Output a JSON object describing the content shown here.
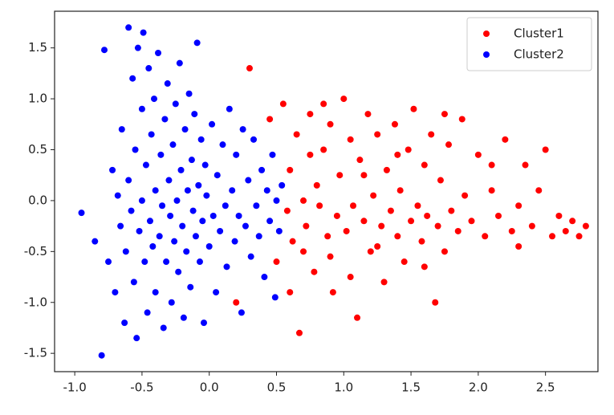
{
  "chart_data": {
    "type": "scatter",
    "xlim": [
      -1.15,
      2.89
    ],
    "ylim": [
      -1.68,
      1.86
    ],
    "xticks": [
      {
        "value": -1.0,
        "label": "-1.0"
      },
      -0.5,
      {
        "value": 0.0,
        "label": "0.0"
      },
      0.5,
      {
        "value": 1.0,
        "label": "1.0"
      },
      1.5,
      {
        "value": 2.0,
        "label": "2.0"
      },
      2.5
    ],
    "yticks": [
      {
        "value": -1.5,
        "label": "-1.5"
      },
      {
        "value": -1.0,
        "label": "-1.0"
      },
      -0.5,
      {
        "value": 0.0,
        "label": "0.0"
      },
      0.5,
      {
        "value": 1.0,
        "label": "1.0"
      },
      1.5
    ],
    "legend": "upper right",
    "series": [
      {
        "name": "Cluster1",
        "color": "#ff0000",
        "x": [
          0.3,
          0.2,
          0.45,
          0.5,
          0.55,
          0.58,
          0.6,
          0.62,
          0.65,
          0.67,
          0.7,
          0.72,
          0.75,
          0.78,
          0.8,
          0.82,
          0.85,
          0.88,
          0.9,
          0.92,
          0.95,
          0.97,
          1.0,
          1.02,
          1.05,
          1.07,
          1.1,
          1.12,
          1.15,
          1.18,
          1.2,
          1.22,
          1.25,
          1.28,
          1.3,
          1.32,
          1.35,
          1.38,
          1.4,
          1.42,
          1.45,
          1.48,
          1.5,
          1.52,
          1.55,
          1.58,
          1.6,
          1.62,
          1.65,
          1.68,
          1.7,
          1.72,
          1.75,
          1.78,
          1.8,
          1.85,
          1.88,
          1.9,
          1.95,
          2.0,
          2.05,
          2.1,
          2.15,
          2.2,
          2.25,
          2.3,
          2.35,
          2.4,
          2.45,
          2.5,
          2.55,
          2.6,
          2.65,
          2.7,
          2.75,
          2.8,
          0.6,
          0.75,
          0.9,
          1.05,
          1.25,
          1.6,
          1.75,
          2.3,
          2.1,
          1.4,
          1.15,
          0.7,
          0.85
        ],
        "values": [
          1.3,
          -1.0,
          0.8,
          -0.6,
          0.95,
          -0.1,
          0.3,
          -0.4,
          0.65,
          -1.3,
          0.0,
          -0.25,
          0.85,
          -0.7,
          0.15,
          -0.05,
          0.5,
          -0.35,
          0.75,
          -0.9,
          -0.15,
          0.25,
          1.0,
          -0.3,
          0.6,
          -0.05,
          -1.15,
          0.4,
          -0.2,
          0.85,
          -0.5,
          0.05,
          0.65,
          -0.25,
          -0.8,
          0.3,
          -0.1,
          0.75,
          -0.35,
          0.1,
          -0.6,
          0.5,
          -0.2,
          0.9,
          -0.05,
          -0.4,
          0.35,
          -0.15,
          0.65,
          -1.0,
          -0.25,
          0.2,
          -0.5,
          0.55,
          -0.1,
          -0.3,
          0.8,
          0.05,
          -0.2,
          0.45,
          -0.35,
          0.1,
          -0.15,
          0.6,
          -0.3,
          -0.05,
          0.35,
          -0.25,
          0.1,
          0.5,
          -0.35,
          -0.15,
          -0.3,
          -0.2,
          -0.35,
          -0.25,
          -0.9,
          0.45,
          -0.55,
          -0.75,
          -0.45,
          -0.65,
          0.85,
          -0.45,
          0.35,
          0.45,
          0.25,
          -0.5,
          0.95
        ]
      },
      {
        "name": "Cluster2",
        "color": "#0000ff",
        "x": [
          -0.95,
          -0.85,
          -0.8,
          -0.78,
          -0.75,
          -0.72,
          -0.7,
          -0.68,
          -0.66,
          -0.65,
          -0.63,
          -0.62,
          -0.6,
          -0.6,
          -0.58,
          -0.57,
          -0.56,
          -0.55,
          -0.54,
          -0.53,
          -0.52,
          -0.5,
          -0.5,
          -0.49,
          -0.48,
          -0.47,
          -0.46,
          -0.45,
          -0.44,
          -0.43,
          -0.42,
          -0.41,
          -0.4,
          -0.4,
          -0.38,
          -0.37,
          -0.36,
          -0.35,
          -0.34,
          -0.33,
          -0.32,
          -0.31,
          -0.3,
          -0.29,
          -0.28,
          -0.27,
          -0.26,
          -0.25,
          -0.24,
          -0.23,
          -0.22,
          -0.21,
          -0.2,
          -0.19,
          -0.18,
          -0.17,
          -0.16,
          -0.15,
          -0.14,
          -0.13,
          -0.12,
          -0.11,
          -0.1,
          -0.09,
          -0.08,
          -0.07,
          -0.06,
          -0.05,
          -0.04,
          -0.03,
          -0.02,
          0.0,
          0.02,
          0.03,
          0.05,
          0.06,
          0.08,
          0.1,
          0.12,
          0.13,
          0.15,
          0.17,
          0.19,
          0.2,
          0.22,
          0.24,
          0.25,
          0.27,
          0.29,
          0.31,
          0.33,
          0.35,
          0.37,
          0.39,
          0.41,
          0.43,
          0.45,
          0.47,
          0.49,
          0.5,
          0.52,
          0.54
        ],
        "values": [
          -0.12,
          -0.4,
          -1.52,
          1.48,
          -0.6,
          0.3,
          -0.9,
          0.05,
          -0.25,
          0.7,
          -1.2,
          -0.5,
          0.2,
          1.7,
          -0.1,
          1.2,
          -0.8,
          0.5,
          -1.35,
          1.5,
          -0.3,
          0.9,
          0.0,
          1.65,
          -0.6,
          0.35,
          -1.1,
          1.3,
          -0.2,
          0.65,
          -0.45,
          1.0,
          0.1,
          -0.9,
          1.45,
          -0.35,
          0.45,
          -0.05,
          -1.25,
          0.8,
          -0.6,
          1.15,
          0.2,
          -0.15,
          -1.0,
          0.55,
          -0.4,
          0.95,
          0.0,
          -0.7,
          1.35,
          0.3,
          -0.25,
          -1.15,
          0.7,
          -0.5,
          0.1,
          1.05,
          -0.85,
          0.4,
          -0.1,
          0.85,
          -0.35,
          1.55,
          0.15,
          -0.6,
          0.6,
          -0.2,
          -1.2,
          0.35,
          0.05,
          -0.45,
          0.75,
          -0.15,
          -0.9,
          0.25,
          -0.3,
          0.55,
          -0.05,
          -0.65,
          0.9,
          0.1,
          -0.4,
          0.45,
          -0.15,
          -1.1,
          0.7,
          -0.25,
          0.2,
          -0.55,
          0.6,
          -0.05,
          -0.35,
          0.3,
          -0.75,
          0.1,
          -0.2,
          0.45,
          -0.95,
          0.0,
          -0.3,
          0.15
        ]
      }
    ]
  }
}
